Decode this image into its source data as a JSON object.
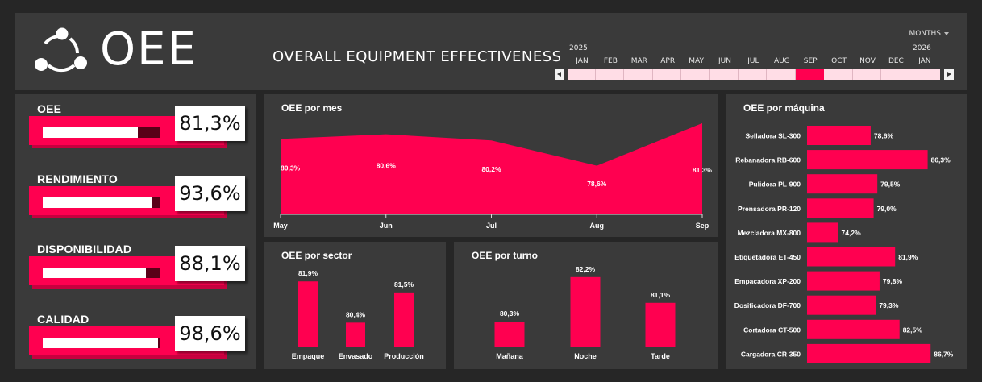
{
  "header": {
    "logo_text": "OEE",
    "title": "OVERALL EQUIPMENT EFFECTIVENESS",
    "months_dropdown": "MONTHS",
    "timeline": {
      "year_start": "2025",
      "year_next": "2026",
      "months": [
        "JAN",
        "FEB",
        "MAR",
        "APR",
        "MAY",
        "JUN",
        "JUL",
        "AUG",
        "SEP",
        "OCT",
        "NOV",
        "DEC",
        "JAN"
      ],
      "selected_index": 8
    }
  },
  "kpis": [
    {
      "label": "OEE",
      "value": "81,3%",
      "fill": 0.813
    },
    {
      "label": "RENDIMIENTO",
      "value": "93,6%",
      "fill": 0.936
    },
    {
      "label": "DISPONIBILIDAD",
      "value": "88,1%",
      "fill": 0.881
    },
    {
      "label": "CALIDAD",
      "value": "98,6%",
      "fill": 0.986
    }
  ],
  "colors": {
    "accent": "#ff0050",
    "panel": "#3a3a3a",
    "background": "#262626"
  },
  "chart_data": [
    {
      "type": "area",
      "title": "OEE por mes",
      "categories": [
        "May",
        "Jun",
        "Jul",
        "Aug",
        "Sep"
      ],
      "values": [
        80.3,
        80.6,
        80.2,
        78.6,
        81.3
      ],
      "labels": [
        "80,3%",
        "80,6%",
        "80,2%",
        "78,6%",
        "81,3%"
      ],
      "ylim": [
        75.5,
        81.5
      ],
      "grid": false
    },
    {
      "type": "bar",
      "title": "OEE por sector",
      "categories": [
        "Empaque",
        "Envasado",
        "Producción"
      ],
      "values": [
        81.9,
        80.4,
        81.5
      ],
      "labels": [
        "81,9%",
        "80,4%",
        "81,5%"
      ],
      "ylim": [
        79.5,
        82.2
      ]
    },
    {
      "type": "bar",
      "title": "OEE por turno",
      "categories": [
        "Mañana",
        "Noche",
        "Tarde"
      ],
      "values": [
        80.3,
        82.2,
        81.1
      ],
      "labels": [
        "80,3%",
        "82,2%",
        "81,1%"
      ],
      "ylim": [
        79.2,
        82.4
      ]
    },
    {
      "type": "bar",
      "orientation": "horizontal",
      "title": "OEE por máquina",
      "categories": [
        "Selladora SL-300",
        "Rebanadora RB-600",
        "Pulidora PL-900",
        "Prensadora PR-120",
        "Mezcladora MX-800",
        "Etiquetadora ET-450",
        "Empacadora XP-200",
        "Dosificadora DF-700",
        "Cortadora CT-500",
        "Cargadora CR-350"
      ],
      "values": [
        78.6,
        86.3,
        79.5,
        79.0,
        74.2,
        81.9,
        79.8,
        79.3,
        82.5,
        86.7
      ],
      "labels": [
        "78,6%",
        "86,3%",
        "79,5%",
        "79,0%",
        "74,2%",
        "81,9%",
        "79,8%",
        "79,3%",
        "82,5%",
        "86,7%"
      ],
      "xlim": [
        70.0,
        87.0
      ]
    }
  ]
}
